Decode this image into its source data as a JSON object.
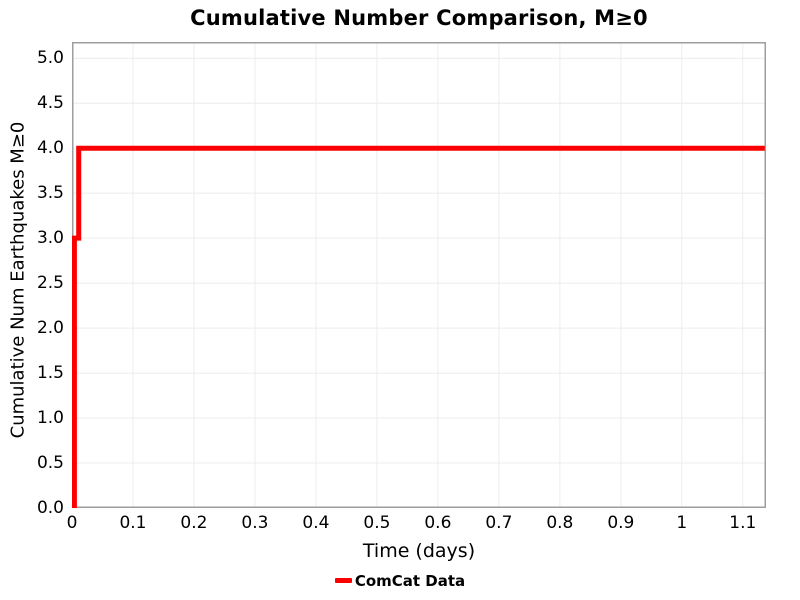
{
  "colors": {
    "background": "#ffffff",
    "line_red": "#fa0000",
    "plot_border": "#9e9e9e",
    "grid": "#ececec",
    "text": "#000000"
  },
  "legend": {
    "items": [
      {
        "label": "ComCat Data",
        "color": "#fa0000"
      }
    ]
  },
  "chart_data": {
    "type": "line",
    "title": "Cumulative Number Comparison, M≥0",
    "xlabel": "Time (days)",
    "ylabel": "Cumulative Num Earthquakes M≥0",
    "xlim": [
      0,
      1.138
    ],
    "ylim": [
      0,
      5.18
    ],
    "grid": true,
    "grid_color": "#ececec",
    "legend_position": "bottom",
    "xticks": [
      {
        "value": 0,
        "label": "0"
      },
      {
        "value": 0.1,
        "label": "0.1"
      },
      {
        "value": 0.2,
        "label": "0.2"
      },
      {
        "value": 0.3,
        "label": "0.3"
      },
      {
        "value": 0.4,
        "label": "0.4"
      },
      {
        "value": 0.5,
        "label": "0.5"
      },
      {
        "value": 0.6,
        "label": "0.6"
      },
      {
        "value": 0.7,
        "label": "0.7"
      },
      {
        "value": 0.8,
        "label": "0.8"
      },
      {
        "value": 0.9,
        "label": "0.9"
      },
      {
        "value": 1,
        "label": "1"
      },
      {
        "value": 1.1,
        "label": "1.1"
      }
    ],
    "yticks": [
      {
        "value": 0,
        "label": "0.0"
      },
      {
        "value": 0.5,
        "label": "0.5"
      },
      {
        "value": 1,
        "label": "1.0"
      },
      {
        "value": 1.5,
        "label": "1.5"
      },
      {
        "value": 2,
        "label": "2.0"
      },
      {
        "value": 2.5,
        "label": "2.5"
      },
      {
        "value": 3,
        "label": "3.0"
      },
      {
        "value": 3.5,
        "label": "3.5"
      },
      {
        "value": 4,
        "label": "4.0"
      },
      {
        "value": 4.5,
        "label": "4.5"
      },
      {
        "value": 5,
        "label": "5.0"
      }
    ],
    "series": [
      {
        "name": "ComCat Data",
        "color": "#fa0000",
        "line_width": 5,
        "points": [
          [
            0,
            0
          ],
          [
            0.004,
            0
          ],
          [
            0.004,
            3
          ],
          [
            0.011,
            3
          ],
          [
            0.011,
            4
          ],
          [
            1.136,
            4
          ]
        ]
      }
    ]
  }
}
